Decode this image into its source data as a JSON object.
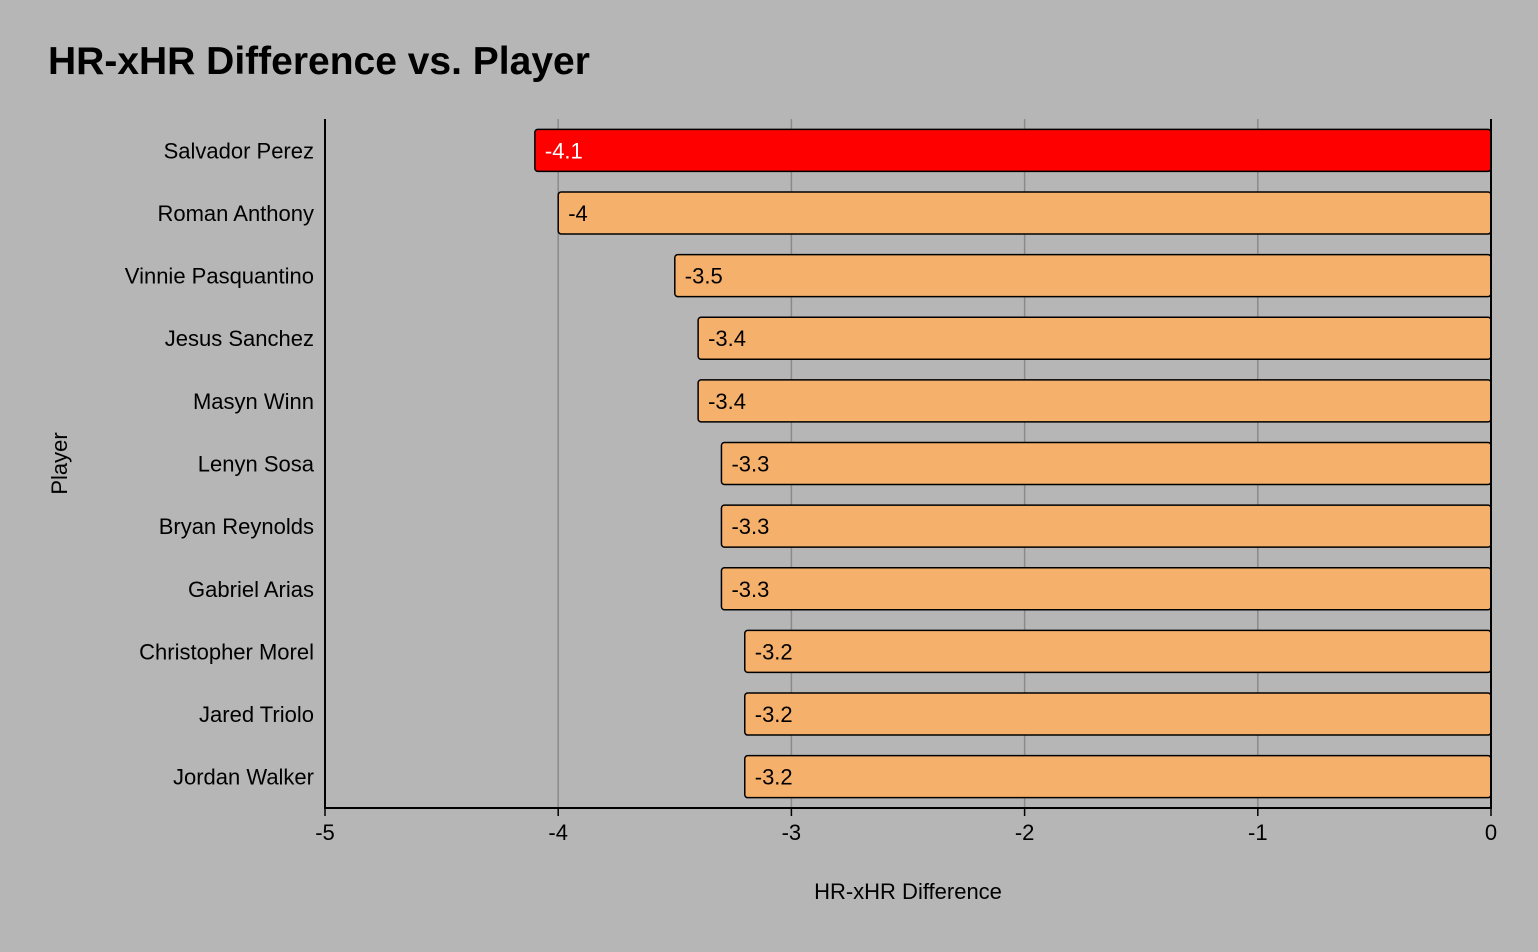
{
  "chart_data": {
    "type": "bar",
    "orientation": "horizontal",
    "title": "HR-xHR Difference vs. Player",
    "xlabel": "HR-xHR Difference",
    "ylabel": "Player",
    "xlim": [
      -5,
      0
    ],
    "xticks": [
      -5,
      -4,
      -3,
      -2,
      -1,
      0
    ],
    "grid": true,
    "categories": [
      "Salvador Perez",
      "Roman Anthony",
      "Vinnie Pasquantino",
      "Jesus Sanchez",
      "Masyn Winn",
      "Lenyn Sosa",
      "Bryan Reynolds",
      "Gabriel Arias",
      "Christopher Morel",
      "Jared Triolo",
      "Jordan Walker"
    ],
    "values": [
      -4.1,
      -4,
      -3.5,
      -3.4,
      -3.4,
      -3.3,
      -3.3,
      -3.3,
      -3.2,
      -3.2,
      -3.2
    ],
    "highlight_index": 0,
    "colors": {
      "background": "#b6b6b6",
      "bar": "#f5b06b",
      "highlight": "#ff0000",
      "grid": "#8a8a8a",
      "axis": "#000000",
      "text": "#000000",
      "highlight_label": "#ffffff"
    }
  }
}
